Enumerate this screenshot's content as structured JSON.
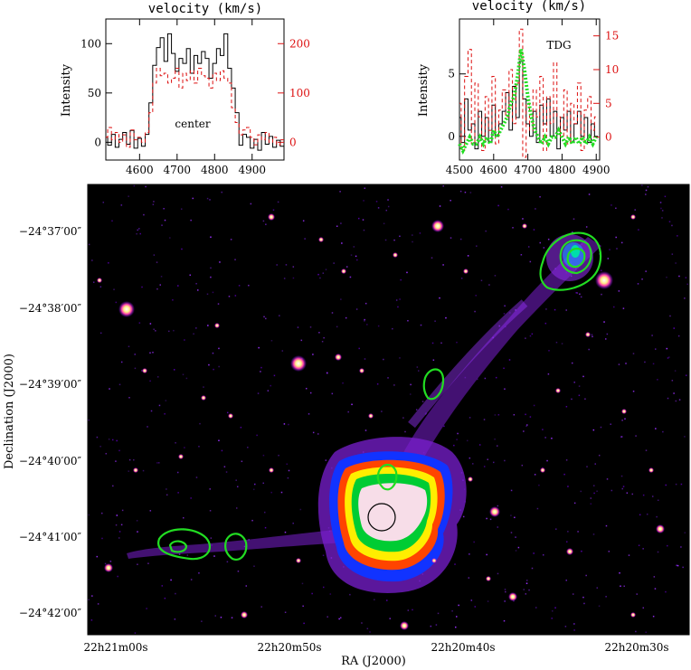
{
  "chart_data": [
    {
      "type": "line",
      "panel": "center",
      "title": "velocity (km/s)",
      "ylabel": "Intensity",
      "annotation": "center",
      "xlim": [
        4510,
        4985
      ],
      "ylim_left": [
        -18,
        125
      ],
      "ylim_right": [
        -36,
        250
      ],
      "x_ticks": [
        4600,
        4700,
        4800,
        4900
      ],
      "y_ticks_left": [
        0,
        50,
        100
      ],
      "y_ticks_right": [
        0,
        100,
        200
      ],
      "colors": {
        "black": "#000000",
        "red": "#dd1111"
      },
      "series": [
        {
          "axis": "left",
          "style": "solid-step",
          "color": "#000000",
          "x": [
            4510,
            4520,
            4530,
            4540,
            4550,
            4560,
            4570,
            4580,
            4590,
            4600,
            4610,
            4620,
            4630,
            4640,
            4650,
            4660,
            4670,
            4680,
            4690,
            4700,
            4710,
            4720,
            4730,
            4740,
            4750,
            4760,
            4770,
            4780,
            4790,
            4800,
            4810,
            4820,
            4830,
            4840,
            4850,
            4860,
            4870,
            4880,
            4890,
            4900,
            4910,
            4920,
            4930,
            4940,
            4950,
            4960,
            4970,
            4980
          ],
          "values": [
            5,
            -3,
            8,
            -5,
            3,
            10,
            -2,
            12,
            -6,
            4,
            -4,
            8,
            40,
            78,
            96,
            106,
            82,
            110,
            90,
            72,
            85,
            80,
            95,
            70,
            88,
            80,
            92,
            85,
            65,
            80,
            95,
            88,
            110,
            75,
            55,
            30,
            -3,
            8,
            5,
            -6,
            3,
            -8,
            10,
            -2,
            6,
            -5,
            2,
            -4
          ]
        },
        {
          "axis": "right",
          "style": "dashed-step",
          "color": "#dd1111",
          "x": [
            4510,
            4520,
            4530,
            4540,
            4550,
            4560,
            4570,
            4580,
            4590,
            4600,
            4610,
            4620,
            4630,
            4640,
            4650,
            4660,
            4670,
            4680,
            4690,
            4700,
            4710,
            4720,
            4730,
            4740,
            4750,
            4760,
            4770,
            4780,
            4790,
            4800,
            4810,
            4820,
            4830,
            4840,
            4850,
            4860,
            4870,
            4880,
            4890,
            4900,
            4910,
            4920,
            4930,
            4940,
            4950,
            4960,
            4970,
            4980
          ],
          "values": [
            10,
            30,
            5,
            20,
            0,
            15,
            -10,
            25,
            5,
            10,
            0,
            20,
            60,
            120,
            150,
            135,
            140,
            120,
            130,
            150,
            110,
            140,
            125,
            145,
            120,
            150,
            135,
            130,
            110,
            140,
            125,
            145,
            130,
            120,
            70,
            40,
            15,
            25,
            30,
            10,
            -5,
            15,
            5,
            20,
            0,
            10,
            -5,
            5
          ]
        }
      ]
    },
    {
      "type": "line",
      "panel": "TDG",
      "title": "velocity (km/s)",
      "ylabel": "Intensity",
      "annotation": "TDG",
      "xlim": [
        4500,
        4910
      ],
      "ylim_left": [
        -1.9,
        9.4
      ],
      "ylim_right": [
        -3.4,
        17.5
      ],
      "x_ticks": [
        4500,
        4600,
        4700,
        4800,
        4900
      ],
      "y_ticks_left": [
        0,
        5
      ],
      "y_ticks_right": [
        0,
        5,
        10,
        15
      ],
      "colors": {
        "black": "#000000",
        "red": "#dd1111",
        "green": "#22dd22"
      },
      "series": [
        {
          "axis": "left",
          "style": "solid-step",
          "color": "#000000",
          "x": [
            4500,
            4510,
            4520,
            4530,
            4540,
            4550,
            4560,
            4570,
            4580,
            4590,
            4600,
            4610,
            4620,
            4630,
            4640,
            4650,
            4660,
            4670,
            4680,
            4690,
            4700,
            4710,
            4720,
            4730,
            4740,
            4750,
            4760,
            4770,
            4780,
            4790,
            4800,
            4810,
            4820,
            4830,
            4840,
            4850,
            4860,
            4870,
            4880,
            4890,
            4900
          ],
          "values": [
            1.5,
            -0.5,
            3.0,
            0.5,
            1.0,
            -1.0,
            2.0,
            0.0,
            1.5,
            -0.5,
            2.5,
            0.0,
            1.0,
            2.0,
            3.5,
            0.5,
            4.0,
            1.5,
            6.0,
            3.0,
            1.0,
            0.0,
            2.0,
            -0.5,
            2.5,
            1.0,
            3.0,
            0.0,
            2.0,
            -1.0,
            1.5,
            0.5,
            2.0,
            -0.5,
            1.0,
            2.0,
            0.0,
            1.5,
            -0.5,
            1.0,
            0.0
          ]
        },
        {
          "axis": "right",
          "style": "dashed-step",
          "color": "#dd1111",
          "x": [
            4500,
            4510,
            4520,
            4530,
            4540,
            4550,
            4560,
            4570,
            4580,
            4590,
            4600,
            4610,
            4620,
            4630,
            4640,
            4650,
            4660,
            4670,
            4680,
            4690,
            4700,
            4710,
            4720,
            4730,
            4740,
            4750,
            4760,
            4770,
            4780,
            4790,
            4800,
            4810,
            4820,
            4830,
            4840,
            4850,
            4860,
            4870,
            4880,
            4890,
            4900
          ],
          "values": [
            5,
            -2,
            9,
            13,
            -1,
            8,
            3,
            -2,
            6,
            1,
            9,
            -1,
            4,
            7,
            3,
            10,
            2,
            8,
            16,
            -3,
            5,
            1,
            7,
            3,
            9,
            -2,
            6,
            2,
            11,
            3,
            0,
            7,
            -1,
            5,
            2,
            8,
            -2,
            4,
            6,
            1,
            3
          ]
        },
        {
          "axis": "right",
          "style": "dotted",
          "color": "#22dd22",
          "x": [
            4500,
            4510,
            4520,
            4530,
            4540,
            4550,
            4560,
            4570,
            4580,
            4590,
            4600,
            4610,
            4620,
            4630,
            4640,
            4650,
            4660,
            4670,
            4680,
            4690,
            4700,
            4710,
            4720,
            4730,
            4740,
            4750,
            4760,
            4770,
            4780,
            4790,
            4800,
            4810,
            4820,
            4830,
            4840,
            4850,
            4860,
            4870,
            4880,
            4890,
            4900
          ],
          "values": [
            -1,
            -2,
            -1,
            0,
            -1,
            -1,
            0,
            -1,
            0,
            -1,
            1,
            0,
            1,
            2,
            3,
            5,
            6,
            9,
            13,
            10,
            6,
            3,
            1,
            0,
            -1,
            0,
            -1,
            0,
            0,
            1,
            0,
            -1,
            0,
            -1,
            0,
            -1,
            0,
            -1,
            0,
            -1,
            0
          ]
        }
      ]
    },
    {
      "type": "image",
      "panel": "main",
      "xlabel": "RA (J2000)",
      "ylabel": "Declination (J2000)",
      "x_ticks": [
        "22h21m00s",
        "22h20m50s",
        "22h20m40s",
        "22h20m30s"
      ],
      "y_ticks": [
        "−24°37′00″",
        "−24°38′00″",
        "−24°39′00″",
        "−24°40′00″",
        "−24°41′00″",
        "−24°42′00″"
      ],
      "colors": {
        "background": "#000000",
        "contour": "#22dd22",
        "tail": "#8a2be2",
        "core": "#f7dde8"
      }
    }
  ],
  "ui": {
    "p1_title": "velocity (km/s)",
    "p1_ylabel": "Intensity",
    "p1_annotation": "center",
    "p2_title": "velocity (km/s)",
    "p2_ylabel": "Intensity",
    "p2_annotation": "TDG",
    "main_xlabel": "RA (J2000)",
    "main_ylabel": "Declination (J2000)"
  }
}
